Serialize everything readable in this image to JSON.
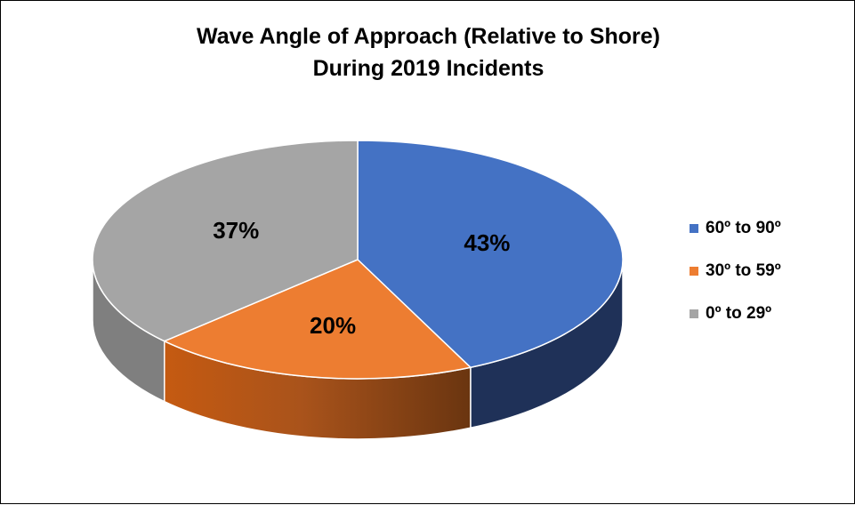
{
  "chart_data": {
    "type": "pie",
    "title": "Wave Angle of Approach (Relative to Shore)",
    "subtitle": "During 2019 Incidents",
    "categories": [
      "60º to 90º",
      "30º to 59º",
      "0º to 29º"
    ],
    "values": [
      43,
      20,
      37
    ],
    "data_labels": [
      "43%",
      "20%",
      "37%"
    ],
    "colors": [
      "#4472C4",
      "#ED7D31",
      "#A5A5A5"
    ],
    "legend_placement": "right",
    "style": "3d"
  }
}
